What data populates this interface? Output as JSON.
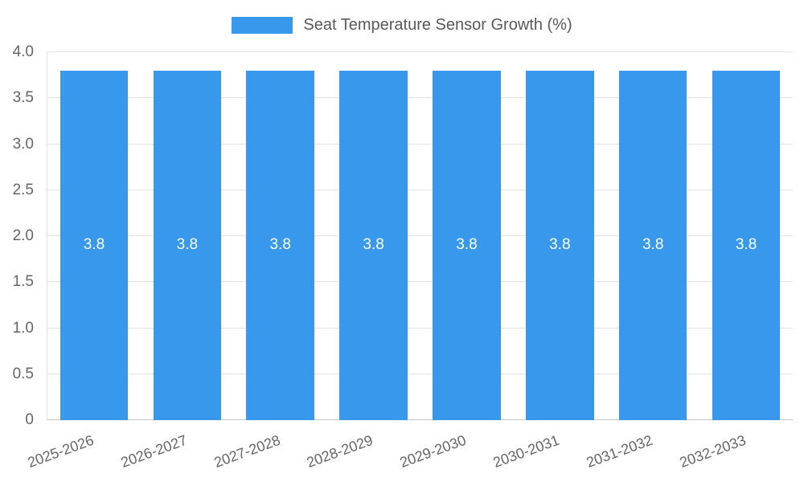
{
  "chart_data": {
    "type": "bar",
    "title": "Seat Temperature Sensor Growth (%)",
    "categories": [
      "2025-2026",
      "2026-2027",
      "2027-2028",
      "2028-2029",
      "2029-2030",
      "2030-2031",
      "2031-2032",
      "2032-2033"
    ],
    "values": [
      3.8,
      3.8,
      3.8,
      3.8,
      3.8,
      3.8,
      3.8,
      3.8
    ],
    "value_labels": [
      "3.8",
      "3.8",
      "3.8",
      "3.8",
      "3.8",
      "3.8",
      "3.8",
      "3.8"
    ],
    "xlabel": "",
    "ylabel": "",
    "ylim": [
      0,
      4
    ],
    "yticks": [
      0,
      0.5,
      1.0,
      1.5,
      2.0,
      2.5,
      3.0,
      3.5,
      4.0
    ],
    "ytick_labels": [
      "0",
      "0.5",
      "1.0",
      "1.5",
      "2.0",
      "2.5",
      "3.0",
      "3.5",
      "4.0"
    ],
    "bar_color": "#3798ec",
    "grid": true,
    "legend_position": "top"
  }
}
